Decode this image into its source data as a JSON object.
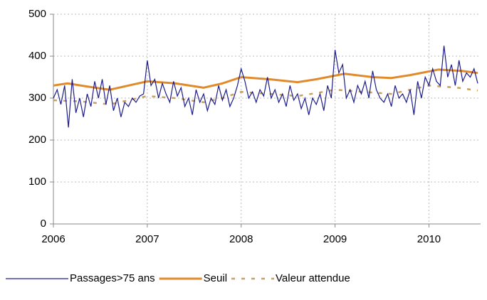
{
  "chart_data": {
    "type": "line",
    "xlim": [
      2006,
      2010.55
    ],
    "xticks": [
      2006,
      2007,
      2008,
      2009,
      2010
    ],
    "ylim": [
      0,
      500
    ],
    "yticks": [
      0,
      100,
      200,
      300,
      400,
      500
    ],
    "grid": true,
    "legend": "bottom",
    "series": [
      {
        "name": "Passages>75 ans",
        "color": "#1c1c8c",
        "style": "solid",
        "x": [
          2006,
          2006.04,
          2006.08,
          2006.12,
          2006.16,
          2006.2,
          2006.24,
          2006.28,
          2006.32,
          2006.36,
          2006.4,
          2006.44,
          2006.48,
          2006.52,
          2006.56,
          2006.6,
          2006.64,
          2006.68,
          2006.72,
          2006.76,
          2006.8,
          2006.84,
          2006.88,
          2006.92,
          2006.96,
          2007,
          2007.04,
          2007.08,
          2007.12,
          2007.16,
          2007.2,
          2007.24,
          2007.28,
          2007.32,
          2007.36,
          2007.4,
          2007.44,
          2007.48,
          2007.52,
          2007.56,
          2007.6,
          2007.64,
          2007.68,
          2007.72,
          2007.76,
          2007.8,
          2007.84,
          2007.88,
          2007.92,
          2007.96,
          2008,
          2008.04,
          2008.08,
          2008.12,
          2008.16,
          2008.2,
          2008.24,
          2008.28,
          2008.32,
          2008.36,
          2008.4,
          2008.44,
          2008.48,
          2008.52,
          2008.56,
          2008.6,
          2008.64,
          2008.68,
          2008.72,
          2008.76,
          2008.8,
          2008.84,
          2008.88,
          2008.92,
          2008.96,
          2009,
          2009.04,
          2009.08,
          2009.12,
          2009.16,
          2009.2,
          2009.24,
          2009.28,
          2009.32,
          2009.36,
          2009.4,
          2009.44,
          2009.48,
          2009.52,
          2009.56,
          2009.6,
          2009.64,
          2009.68,
          2009.72,
          2009.76,
          2009.8,
          2009.84,
          2009.88,
          2009.92,
          2009.96,
          2010,
          2010.04,
          2010.08,
          2010.12,
          2010.16,
          2010.2,
          2010.24,
          2010.28,
          2010.32,
          2010.36,
          2010.4,
          2010.44,
          2010.48,
          2010.52
        ],
        "values": [
          300,
          320,
          285,
          330,
          230,
          345,
          265,
          300,
          255,
          310,
          280,
          340,
          300,
          345,
          285,
          330,
          270,
          300,
          255,
          290,
          280,
          300,
          290,
          305,
          310,
          390,
          330,
          345,
          300,
          335,
          310,
          290,
          340,
          305,
          325,
          280,
          300,
          260,
          320,
          290,
          310,
          270,
          300,
          285,
          330,
          295,
          320,
          280,
          300,
          330,
          370,
          340,
          300,
          315,
          290,
          320,
          305,
          350,
          300,
          320,
          290,
          310,
          280,
          330,
          295,
          310,
          275,
          300,
          260,
          300,
          285,
          310,
          270,
          330,
          300,
          415,
          360,
          380,
          300,
          320,
          290,
          330,
          310,
          340,
          300,
          365,
          320,
          300,
          290,
          310,
          280,
          330,
          300,
          310,
          290,
          320,
          260,
          340,
          300,
          350,
          330,
          370,
          340,
          330,
          425,
          350,
          380,
          330,
          390,
          340,
          360,
          350,
          370,
          335
        ]
      },
      {
        "name": "Seuil",
        "color": "#e08a2c",
        "style": "thick",
        "x": [
          2006,
          2006.15,
          2006.35,
          2006.6,
          2006.8,
          2007,
          2007.3,
          2007.6,
          2007.8,
          2008,
          2008.3,
          2008.6,
          2008.8,
          2009.1,
          2009.4,
          2009.6,
          2009.8,
          2010.1,
          2010.35,
          2010.52
        ],
        "values": [
          330,
          335,
          328,
          320,
          330,
          340,
          335,
          325,
          335,
          350,
          345,
          338,
          345,
          358,
          350,
          348,
          355,
          368,
          365,
          360
        ]
      },
      {
        "name": "Valeur attendue",
        "color": "#c8a060",
        "style": "dashed",
        "x": [
          2006,
          2006.3,
          2006.6,
          2006.8,
          2007,
          2007.3,
          2007.6,
          2007.8,
          2008,
          2008.3,
          2008.6,
          2008.8,
          2009,
          2009.3,
          2009.6,
          2009.8,
          2010,
          2010.3,
          2010.52
        ],
        "values": [
          295,
          292,
          285,
          295,
          305,
          300,
          290,
          300,
          315,
          310,
          305,
          312,
          320,
          315,
          310,
          320,
          330,
          325,
          318
        ]
      }
    ]
  }
}
